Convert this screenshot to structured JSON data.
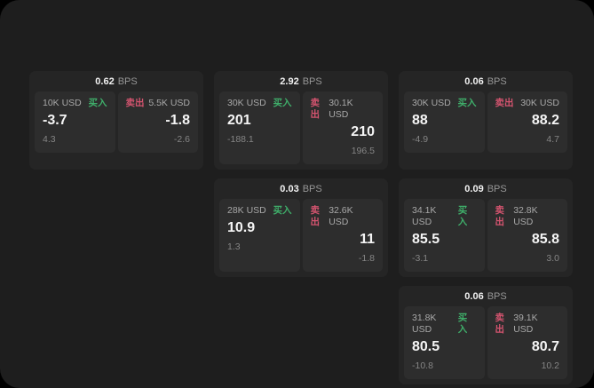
{
  "labels": {
    "bps_unit": "BPS",
    "buy": "买入",
    "sell": "卖出"
  },
  "colors": {
    "buy_green": "#3fae6a",
    "sell_red": "#d4546f",
    "page_bg": "#1e1e1e",
    "card_bg": "#252525",
    "panel_bg": "#2d2d2d"
  },
  "cards": [
    {
      "bps": "0.62",
      "buy": {
        "amount": "10K USD",
        "value": "-3.7",
        "delta": "4.3"
      },
      "sell": {
        "amount": "5.5K USD",
        "value": "-1.8",
        "delta": "-2.6"
      }
    },
    {
      "bps": "2.92",
      "buy": {
        "amount": "30K USD",
        "value": "201",
        "delta": "-188.1"
      },
      "sell": {
        "amount": "30.1K USD",
        "value": "210",
        "delta": "196.5"
      }
    },
    {
      "bps": "0.06",
      "buy": {
        "amount": "30K USD",
        "value": "88",
        "delta": "-4.9"
      },
      "sell": {
        "amount": "30K USD",
        "value": "88.2",
        "delta": "4.7"
      }
    },
    {
      "bps": "0.03",
      "buy": {
        "amount": "28K USD",
        "value": "10.9",
        "delta": "1.3"
      },
      "sell": {
        "amount": "32.6K USD",
        "value": "11",
        "delta": "-1.8"
      }
    },
    {
      "bps": "0.09",
      "buy": {
        "amount": "34.1K USD",
        "value": "85.5",
        "delta": "-3.1"
      },
      "sell": {
        "amount": "32.8K USD",
        "value": "85.8",
        "delta": "3.0"
      }
    },
    {
      "bps": "0.06",
      "buy": {
        "amount": "31.8K USD",
        "value": "80.5",
        "delta": "-10.8"
      },
      "sell": {
        "amount": "39.1K USD",
        "value": "80.7",
        "delta": "10.2"
      }
    }
  ]
}
